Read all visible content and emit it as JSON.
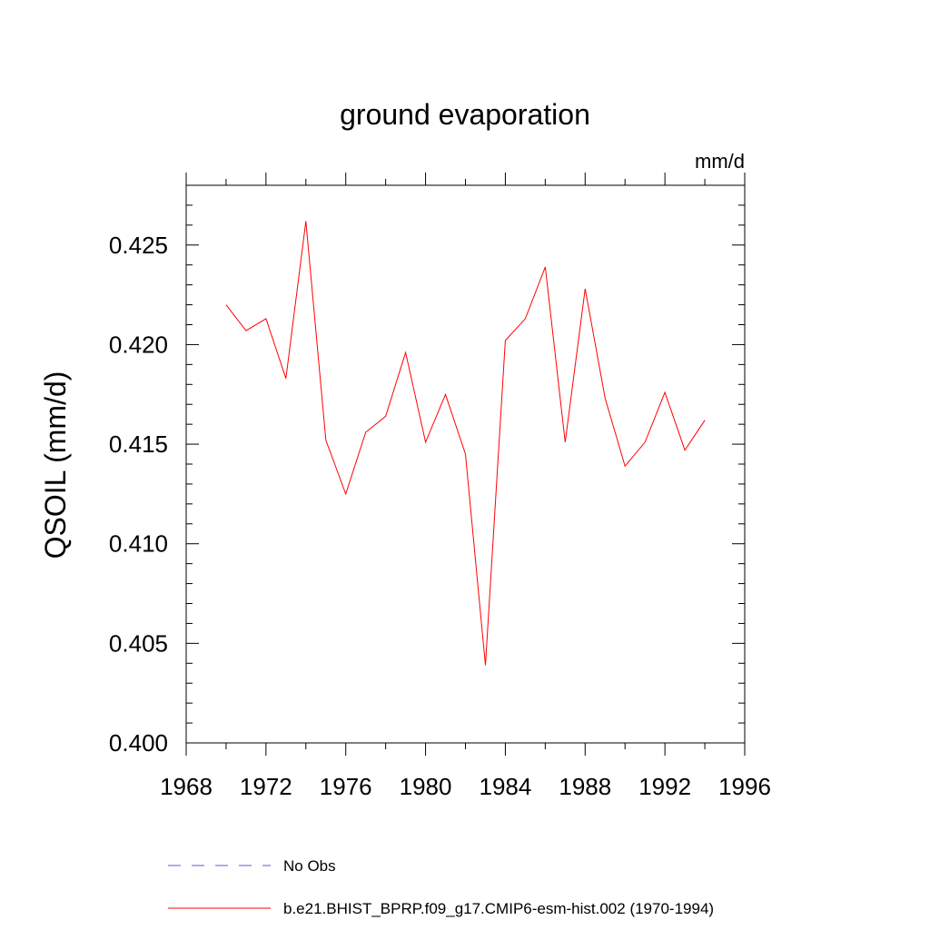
{
  "chart_data": {
    "type": "line",
    "title": "ground evaporation",
    "units_label": "mm/d",
    "ylabel": "QSOIL  (mm/d)",
    "xlabel": "",
    "xlim": [
      1968,
      1996
    ],
    "ylim": [
      0.4,
      0.428
    ],
    "x_ticks": [
      1968,
      1972,
      1976,
      1980,
      1984,
      1988,
      1992,
      1996
    ],
    "x_tick_labels": [
      "1968",
      "1972",
      "1976",
      "1980",
      "1984",
      "1988",
      "1992",
      "1996"
    ],
    "y_ticks": [
      0.4,
      0.405,
      0.41,
      0.415,
      0.42,
      0.425
    ],
    "y_tick_labels": [
      "0.400",
      "0.405",
      "0.410",
      "0.415",
      "0.420",
      "0.425"
    ],
    "grid": false,
    "legend_position": "bottom",
    "series": [
      {
        "name": "b.e21.BHIST_BPRP.f09_g17.CMIP6-esm-hist.002 (1970-1994)",
        "color": "#ff0000",
        "style": "solid",
        "x": [
          1970,
          1971,
          1972,
          1973,
          1974,
          1975,
          1976,
          1977,
          1978,
          1979,
          1980,
          1981,
          1982,
          1983,
          1984,
          1985,
          1986,
          1987,
          1988,
          1989,
          1990,
          1991,
          1992,
          1993,
          1994
        ],
        "values": [
          0.422,
          0.4207,
          0.4213,
          0.4183,
          0.4262,
          0.4152,
          0.4125,
          0.4156,
          0.4164,
          0.4196,
          0.4151,
          0.4175,
          0.4145,
          0.4039,
          0.4202,
          0.4213,
          0.4239,
          0.4151,
          0.4228,
          0.4173,
          0.4139,
          0.4151,
          0.4176,
          0.4147,
          0.4162
        ]
      },
      {
        "name": "No Obs",
        "color": "#6a5acd",
        "style": "dashed",
        "x": [],
        "values": []
      }
    ]
  }
}
